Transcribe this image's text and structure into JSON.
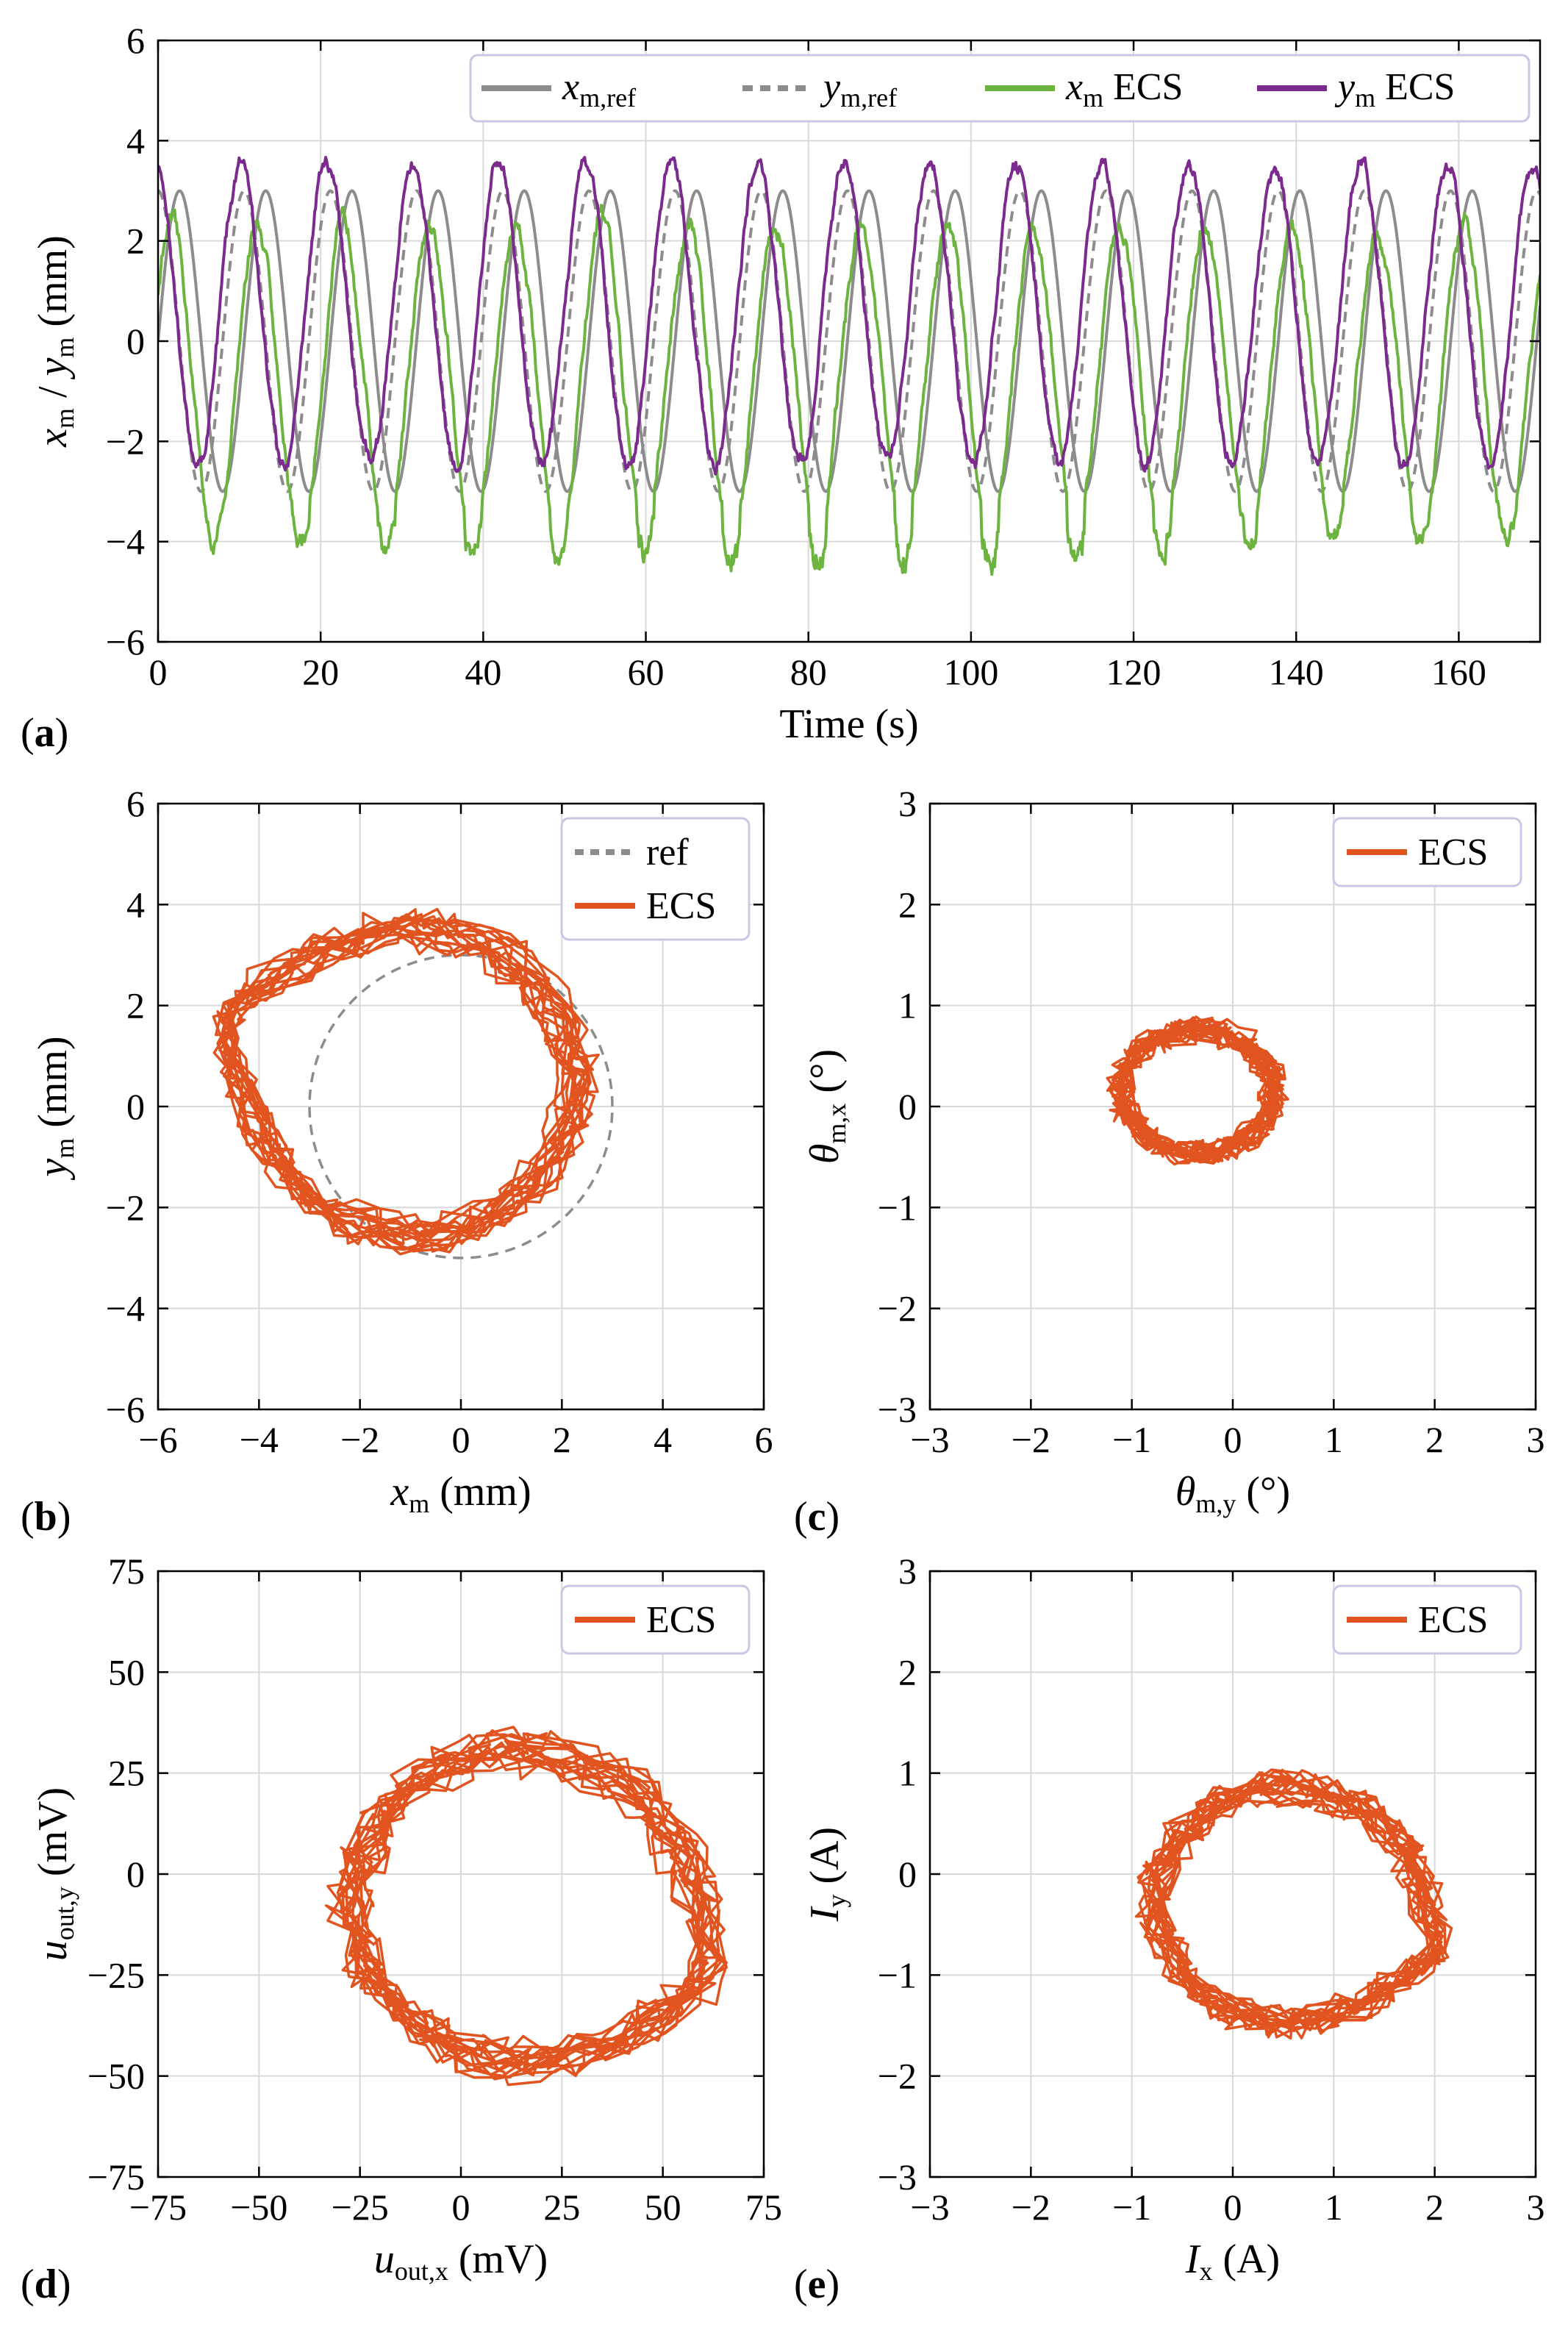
{
  "chart_data": [
    {
      "panel": "(a)",
      "type": "line",
      "title": "",
      "xlabel": "Time (s)",
      "ylabel": "x_m / y_m (mm)",
      "xlim": [
        0,
        170
      ],
      "ylim": [
        -6,
        6
      ],
      "xticks": [
        0,
        20,
        40,
        60,
        80,
        100,
        120,
        140,
        160
      ],
      "yticks": [
        -6,
        -4,
        -2,
        0,
        2,
        4,
        6
      ],
      "grid": true,
      "legend_position": "top-right",
      "period_s": 10.6,
      "series": [
        {
          "name": "x_m,ref",
          "label": "x",
          "sub": "m,ref",
          "color": "#8c8c8c",
          "dash": "solid",
          "amplitude": 3,
          "offset": 0,
          "phase_deg": 0
        },
        {
          "name": "y_m,ref",
          "label": "y",
          "sub": "m,ref",
          "color": "#8c8c8c",
          "dash": "dashed",
          "amplitude": 3,
          "offset": 0,
          "phase_deg": 90
        },
        {
          "name": "x_m ECS",
          "label": "x",
          "sub": "m",
          "suffix": " ECS",
          "color": "#6db33f",
          "dash": "solid",
          "amplitude": 3.1,
          "offset": -0.8,
          "phase_deg": 35,
          "noise": 0.22
        },
        {
          "name": "y_m ECS",
          "label": "y",
          "sub": "m",
          "suffix": " ECS",
          "color": "#7b2a8e",
          "dash": "solid",
          "amplitude": 3.0,
          "offset": 0.55,
          "phase_deg": 105,
          "noise": 0.18
        }
      ]
    },
    {
      "panel": "(b)",
      "type": "line",
      "xlabel": "x_m (mm)",
      "ylabel": "y_m (mm)",
      "xlim": [
        -6,
        6
      ],
      "ylim": [
        -6,
        6
      ],
      "xticks": [
        -6,
        -4,
        -2,
        0,
        2,
        4,
        6
      ],
      "yticks": [
        -6,
        -4,
        -2,
        0,
        2,
        4,
        6
      ],
      "grid": true,
      "legend_position": "top-right",
      "series": [
        {
          "name": "ref",
          "color": "#8c8c8c",
          "dash": "dashed",
          "center": [
            0,
            0
          ],
          "radius": [
            3,
            3
          ]
        },
        {
          "name": "ECS",
          "color": "#e2541f",
          "dash": "solid",
          "center": [
            -0.95,
            0.5
          ],
          "radius": [
            3.2,
            3.0
          ],
          "loops": 16,
          "noise": 0.25,
          "bulge": [
            -4.8,
            1.9
          ]
        }
      ]
    },
    {
      "panel": "(c)",
      "type": "line",
      "xlabel": "θ_m,y (°)",
      "ylabel": "θ_m,x (°)",
      "xlim": [
        -3,
        3
      ],
      "ylim": [
        -3,
        3
      ],
      "xticks": [
        -3,
        -2,
        -1,
        0,
        1,
        2,
        3
      ],
      "yticks": [
        -3,
        -2,
        -1,
        0,
        1,
        2,
        3
      ],
      "grid": true,
      "legend_position": "top-right",
      "series": [
        {
          "name": "ECS",
          "color": "#e2541f",
          "dash": "solid",
          "center": [
            -0.35,
            0.15
          ],
          "radius": [
            0.75,
            0.6
          ],
          "loops": 16,
          "noise": 0.1
        }
      ]
    },
    {
      "panel": "(d)",
      "type": "line",
      "xlabel": "u_out,x (mV)",
      "ylabel": "u_out,y (mV)",
      "xlim": [
        -75,
        75
      ],
      "ylim": [
        -75,
        75
      ],
      "xticks": [
        -75,
        -50,
        -25,
        0,
        25,
        50,
        75
      ],
      "yticks": [
        -75,
        -50,
        -25,
        0,
        25,
        50,
        75
      ],
      "grid": true,
      "legend_position": "top-right",
      "series": [
        {
          "name": "ECS",
          "color": "#e2541f",
          "dash": "solid",
          "center": [
            15,
            -8
          ],
          "radius": [
            42,
            38
          ],
          "loops": 16,
          "noise": 3.5,
          "bulge": [
            63,
            -27
          ]
        }
      ]
    },
    {
      "panel": "(e)",
      "type": "line",
      "xlabel": "I_x (A)",
      "ylabel": "I_y (A)",
      "xlim": [
        -3,
        3
      ],
      "ylim": [
        -3,
        3
      ],
      "xticks": [
        -3,
        -2,
        -1,
        0,
        1,
        2,
        3
      ],
      "yticks": [
        -3,
        -2,
        -1,
        0,
        1,
        2,
        3
      ],
      "grid": true,
      "legend_position": "top-right",
      "series": [
        {
          "name": "ECS",
          "color": "#e2541f",
          "dash": "solid",
          "center": [
            0.55,
            -0.3
          ],
          "radius": [
            1.3,
            1.15
          ],
          "loops": 16,
          "noise": 0.12,
          "bulge": [
            2.05,
            -0.8
          ]
        }
      ]
    }
  ]
}
